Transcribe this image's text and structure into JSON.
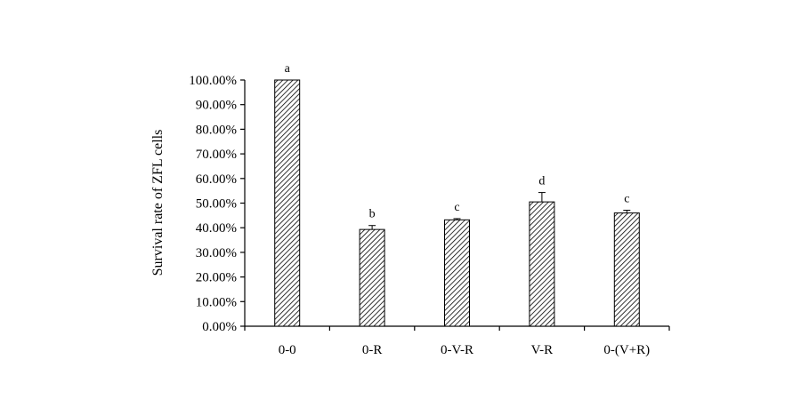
{
  "chart_data": {
    "type": "bar",
    "title": "",
    "xlabel": "",
    "ylabel": "Survival rate  of ZFL cells",
    "categories": [
      "0-0",
      "0-R",
      "0-V-R",
      "V-R",
      "0-(V+R)"
    ],
    "values": [
      100.0,
      39.3,
      43.2,
      50.5,
      46.0
    ],
    "errors": [
      0.0,
      1.6,
      0.5,
      3.8,
      1.1
    ],
    "significance_letters": [
      "a",
      "b",
      "c",
      "d",
      "c"
    ],
    "ylim": [
      0,
      100
    ],
    "yticks": [
      "0.00%",
      "10.00%",
      "20.00%",
      "30.00%",
      "40.00%",
      "50.00%",
      "60.00%",
      "70.00%",
      "80.00%",
      "90.00%",
      "100.00%"
    ],
    "ytick_values": [
      0,
      10,
      20,
      30,
      40,
      50,
      60,
      70,
      80,
      90,
      100
    ],
    "bar_fill": "diagonal-hatch",
    "bar_color": "#000000",
    "grid": false,
    "legend": "none"
  }
}
